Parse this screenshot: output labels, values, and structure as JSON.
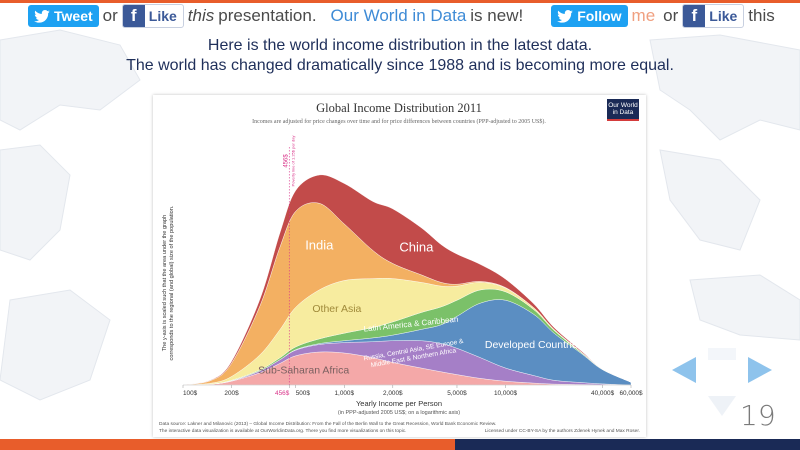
{
  "topbar": {
    "tweet_label": "Tweet",
    "or1": "or",
    "like_label": "Like",
    "this_word": "this",
    "presentation": "presentation.",
    "owid": "Our World in Data",
    "is_new": "is new!",
    "follow_label": "Follow",
    "me": "me",
    "or2": "or",
    "like2_label": "Like",
    "this2": "this"
  },
  "headline": {
    "line1": "Here is the world income distribution in the latest data.",
    "line2": "The world has changed dramatically since 1988 and is becoming more equal."
  },
  "logo": {
    "line1": "Our World",
    "line2": "in Data"
  },
  "chart_data": {
    "type": "area",
    "title": "Global Income Distribution 2011",
    "subtitle": "Incomes are adjusted for price changes over time and for price differences between countries (PPP-adjusted to 2005 US$).",
    "xlabel": "Yearly Income per Person",
    "xlabel_sub": "(in PPP-adjusted 2005 US$; on a logarithmic axis)",
    "ylabel_line1": "The y-axis is scaled such that the area under the graph",
    "ylabel_line2": "corresponds to the regional (and global) size of the population.",
    "x_scale": "log",
    "xlim": [
      100,
      60000
    ],
    "x_ticks": [
      {
        "value": 100,
        "label": "100$"
      },
      {
        "value": 200,
        "label": "200$"
      },
      {
        "value": 456,
        "label": "456$"
      },
      {
        "value": 500,
        "label": "500$"
      },
      {
        "value": 1000,
        "label": "1,000$"
      },
      {
        "value": 2000,
        "label": "2,000$"
      },
      {
        "value": 5000,
        "label": "5,000$"
      },
      {
        "value": 10000,
        "label": "10,000$"
      },
      {
        "value": 40000,
        "label": "40,000$"
      },
      {
        "value": 60000,
        "label": "60,000$"
      }
    ],
    "poverty_line": {
      "value": 456,
      "label": "456$",
      "sublabel": "Poverty line of 1.25$ per day"
    },
    "grid": false,
    "x": [
      100,
      150,
      200,
      300,
      400,
      500,
      700,
      1000,
      1500,
      2000,
      3000,
      4000,
      5000,
      7000,
      10000,
      15000,
      20000,
      30000,
      40000,
      60000
    ],
    "series": [
      {
        "name": "Sub-Saharan Africa",
        "color": "#f4a8a8",
        "values": [
          0,
          1,
          4,
          13,
          23,
          31,
          35,
          34,
          29,
          24,
          18,
          14,
          11,
          7,
          4,
          2,
          1,
          0.5,
          0.2,
          0
        ]
      },
      {
        "name": "Russia, Central Asia, SE Europe & Middle East & Northern Africa",
        "color": "#a57fc7",
        "values": [
          0,
          0,
          0.5,
          2,
          4,
          6,
          8,
          11,
          17,
          23,
          29,
          30,
          28,
          22,
          14,
          8,
          4,
          2,
          1,
          0
        ]
      },
      {
        "name": "Developed Countries",
        "color": "#5b8ec2",
        "values": [
          0,
          0,
          0,
          0,
          0,
          0.5,
          1,
          2,
          4,
          6,
          12,
          20,
          34,
          58,
          72,
          65,
          50,
          30,
          15,
          3
        ]
      },
      {
        "name": "Latin America & Caribbean",
        "color": "#7bc169",
        "values": [
          0,
          0,
          0.5,
          1,
          2,
          3,
          5,
          8,
          11,
          14,
          18,
          19,
          17,
          14,
          9,
          5,
          3,
          1,
          0.5,
          0
        ]
      },
      {
        "name": "Other Asia",
        "color": "#f7ec9f",
        "values": [
          0,
          1,
          4,
          16,
          30,
          42,
          52,
          56,
          52,
          46,
          32,
          22,
          15,
          8,
          4,
          2,
          1,
          0.5,
          0,
          0
        ]
      },
      {
        "name": "India",
        "color": "#f3b062",
        "values": [
          0,
          3,
          14,
          52,
          88,
          102,
          92,
          60,
          30,
          16,
          8,
          4,
          2,
          1,
          0.5,
          0,
          0,
          0,
          0,
          0
        ]
      },
      {
        "name": "China",
        "color": "#c24b4a",
        "values": [
          0,
          0.5,
          2,
          7,
          15,
          22,
          30,
          43,
          52,
          58,
          50,
          40,
          32,
          18,
          9,
          4,
          2,
          1,
          0,
          0
        ]
      }
    ],
    "series_labels": [
      {
        "name": "India",
        "color": "#ffffff"
      },
      {
        "name": "China",
        "color": "#ffffff"
      },
      {
        "name": "Other Asia",
        "color": "#a08a3a"
      },
      {
        "name": "Latin America & Caribbean",
        "color": "#ffffff"
      },
      {
        "name": "Russia, Central Asia, SE Europe &",
        "color": "#ffffff"
      },
      {
        "name": "Middle East & Northern Africa",
        "color": "#ffffff"
      },
      {
        "name": "Developed Countries",
        "color": "#ffffff"
      },
      {
        "name": "Sub-Saharan Africa",
        "color": "#7a6060"
      }
    ],
    "source_line1": "Data source: Lakner and Milanovic (2013) – Global Income Distribution: From the Fall of the Berlin Wall to the Great Recession, World Bank Economic Review.",
    "source_line2": "The interactive data visualization is available at OurWorldinData.org. There you find more visualizations on this topic.",
    "license": "Licensed under CC-BY-SA by the authors Zdenek Hynek and Max Roser."
  },
  "slide": {
    "number": "19"
  },
  "colors": {
    "accent": "#e85d2b",
    "navy": "#1a2a56",
    "twitter": "#1da1f2",
    "facebook": "#3b5998",
    "arrow": "#8ec3ec"
  }
}
